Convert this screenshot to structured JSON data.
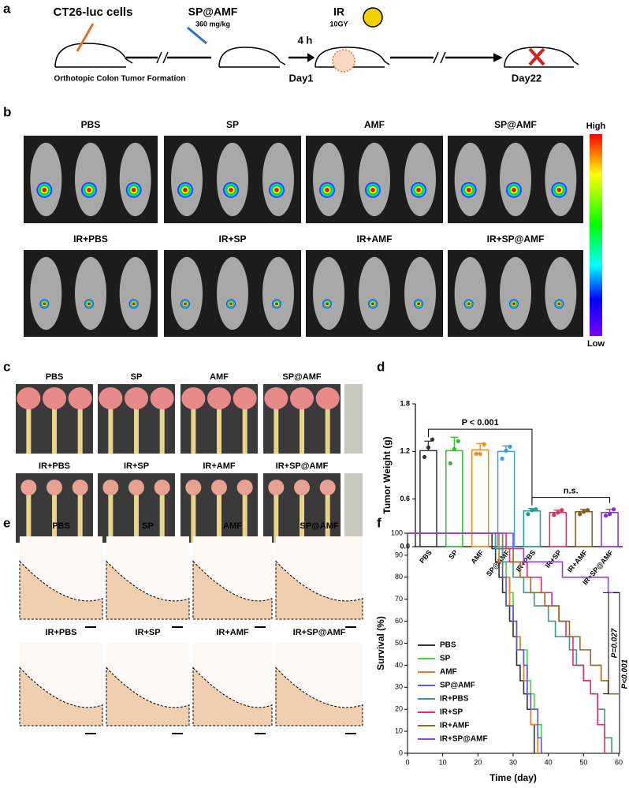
{
  "panel_a": {
    "letter": "a",
    "cells": "CT26-luc cells",
    "caption": "Orthotopic Colon Tumor Formation",
    "drug": "SP@AMF",
    "dose": "360 mg/kg",
    "interval": "4 h",
    "day1": "Day1",
    "ir": "IR",
    "ir_dose": "10GY",
    "day22": "Day22"
  },
  "panel_b": {
    "letter": "b",
    "groups": [
      "PBS",
      "SP",
      "AMF",
      "SP@AMF",
      "IR+PBS",
      "IR+SP",
      "IR+AMF",
      "IR+SP@AMF"
    ],
    "scale_high": "High",
    "scale_low": "Low"
  },
  "panel_c": {
    "letter": "c",
    "groups": [
      "PBS",
      "SP",
      "AMF",
      "SP@AMF",
      "IR+PBS",
      "IR+SP",
      "IR+AMF",
      "IR+SP@AMF"
    ]
  },
  "panel_e": {
    "letter": "e",
    "groups": [
      "PBS",
      "SP",
      "AMF",
      "SP@AMF",
      "IR+PBS",
      "IR+SP",
      "IR+AMF",
      "IR+SP@AMF"
    ]
  },
  "chart_data": [
    {
      "type": "bar",
      "label": "d",
      "ylabel": "Tumor Weight (g)",
      "categories": [
        "PBS",
        "SP",
        "AMF",
        "SP@AMF",
        "IR+PBS",
        "IR+SP",
        "IR+AMF",
        "IR+SP@AMF"
      ],
      "values": [
        1.21,
        1.21,
        1.22,
        1.2,
        0.45,
        0.43,
        0.44,
        0.43
      ],
      "errors": [
        0.12,
        0.17,
        0.08,
        0.07,
        0.03,
        0.03,
        0.03,
        0.04
      ],
      "points": [
        [
          1.13,
          1.25,
          1.35
        ],
        [
          1.05,
          1.23,
          1.33
        ],
        [
          1.17,
          1.17,
          1.29
        ],
        [
          1.11,
          1.21,
          1.26
        ],
        [
          0.41,
          0.46,
          0.47
        ],
        [
          0.4,
          0.43,
          0.46
        ],
        [
          0.41,
          0.44,
          0.46
        ],
        [
          0.39,
          0.41,
          0.47
        ]
      ],
      "colors": [
        "#333333",
        "#2fbf2f",
        "#f28a1c",
        "#3b9de8",
        "#1f9c9c",
        "#e0305f",
        "#8a5a1c",
        "#8a2be2"
      ],
      "ylim": [
        0,
        1.8
      ],
      "yticks": [
        {
          "value": 0,
          "label": "0.0"
        },
        0.6,
        1.2,
        1.8
      ],
      "annotations": [
        "P < 0.001",
        "n.s."
      ]
    },
    {
      "type": "line",
      "label": "f",
      "xlabel": "Time (day)",
      "ylabel": "Survival (%)",
      "xlim": [
        0,
        60
      ],
      "xticks": [
        0,
        10,
        20,
        30,
        40,
        50,
        60
      ],
      "ylim": [
        0,
        100
      ],
      "yticks": [
        0,
        10,
        20,
        30,
        40,
        50,
        60,
        70,
        80,
        90,
        100
      ],
      "series": [
        {
          "name": "PBS",
          "color": "#333333",
          "x": [
            0,
            24,
            25,
            26,
            27,
            28,
            29,
            30,
            31,
            32,
            33,
            34,
            35,
            36
          ],
          "values": [
            100,
            93,
            87,
            80,
            73,
            67,
            60,
            53,
            40,
            33,
            27,
            20,
            13,
            0
          ]
        },
        {
          "name": "SP",
          "color": "#3ddc3d",
          "x": [
            0,
            25,
            26,
            28,
            29,
            30,
            31,
            32,
            34,
            35,
            36,
            37,
            38
          ],
          "values": [
            100,
            93,
            87,
            80,
            73,
            60,
            53,
            47,
            33,
            27,
            20,
            13,
            0
          ]
        },
        {
          "name": "AMF",
          "color": "#f27a1c",
          "x": [
            0,
            26,
            27,
            29,
            30,
            31,
            32,
            33,
            34,
            35,
            37
          ],
          "values": [
            100,
            87,
            80,
            67,
            60,
            53,
            47,
            33,
            27,
            13,
            0
          ]
        },
        {
          "name": "SP@AMF",
          "color": "#5a5ae8",
          "x": [
            0,
            25,
            27,
            28,
            30,
            31,
            33,
            34,
            35,
            37,
            38
          ],
          "values": [
            100,
            93,
            80,
            67,
            60,
            47,
            40,
            27,
            20,
            7,
            0
          ]
        },
        {
          "name": "IR+PBS",
          "color": "#3a9a8a",
          "x": [
            0,
            25,
            27,
            30,
            33,
            36,
            40,
            42,
            46,
            48,
            50,
            52,
            54,
            56,
            58
          ],
          "values": [
            100,
            93,
            87,
            80,
            73,
            67,
            60,
            53,
            47,
            40,
            33,
            27,
            20,
            7,
            0
          ]
        },
        {
          "name": "IR+SP",
          "color": "#e0306a",
          "x": [
            0,
            28,
            29,
            34,
            38,
            41,
            43,
            45,
            47,
            50,
            52,
            54,
            56
          ],
          "values": [
            100,
            93,
            87,
            80,
            73,
            67,
            60,
            53,
            40,
            33,
            27,
            13,
            0
          ]
        },
        {
          "name": "IR+AMF",
          "color": "#9a6a1c",
          "x": [
            0,
            27,
            30,
            32,
            35,
            39,
            43,
            46,
            49,
            52,
            55,
            57,
            60
          ],
          "values": [
            100,
            93,
            87,
            80,
            73,
            67,
            60,
            53,
            47,
            40,
            33,
            27,
            27
          ]
        },
        {
          "name": "IR+SP@AMF",
          "color": "#9a3de8",
          "x": [
            0,
            30,
            33,
            44,
            57,
            60
          ],
          "values": [
            100,
            93,
            87,
            80,
            73,
            73
          ]
        }
      ],
      "annotations": [
        "P=0.027",
        "P<0.001"
      ]
    }
  ]
}
